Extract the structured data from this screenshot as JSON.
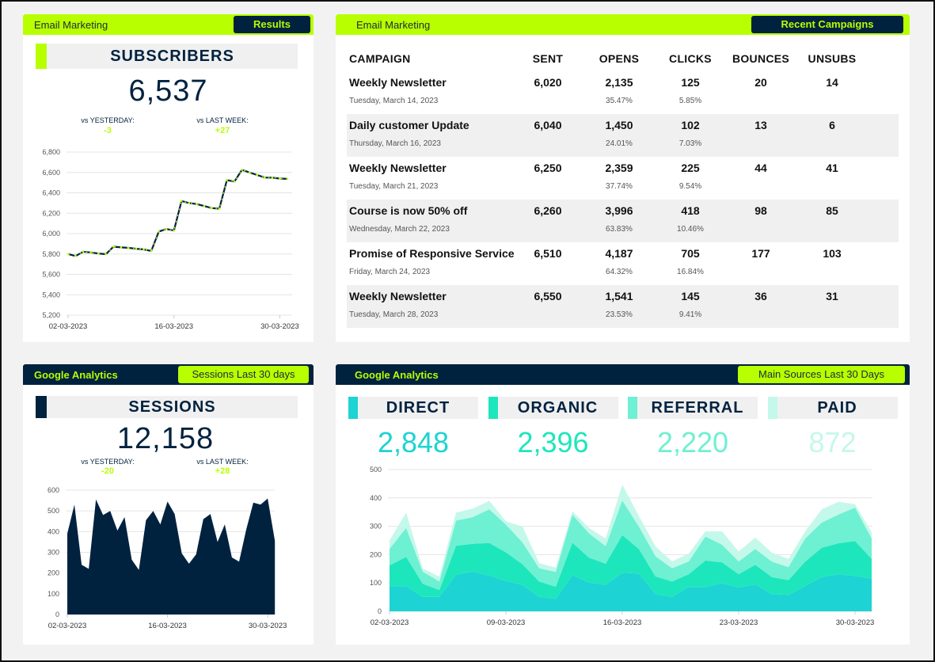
{
  "colors": {
    "lime": "#b8ff00",
    "navy": "#01223f",
    "direct": "#1dd3d3",
    "organic": "#1ee6bc",
    "referral": "#6ef0d2",
    "paid": "#c4f8ea"
  },
  "subscribers": {
    "section": "Email Marketing",
    "badge": "Results",
    "label": "SUBSCRIBERS",
    "value": "6,537",
    "vs_yesterday_label": "vs YESTERDAY:",
    "vs_yesterday": "-3",
    "vs_last_week_label": "vs LAST WEEK:",
    "vs_last_week": "+27"
  },
  "sessions": {
    "section": "Google Analytics",
    "badge": "Sessions Last 30 days",
    "label": "SESSIONS",
    "value": "12,158",
    "vs_yesterday_label": "vs YESTERDAY:",
    "vs_yesterday": "-20",
    "vs_last_week_label": "vs LAST WEEK:",
    "vs_last_week": "+28"
  },
  "campaigns": {
    "section": "Email Marketing",
    "badge": "Recent Campaigns",
    "headers": [
      "CAMPAIGN",
      "SENT",
      "OPENS",
      "CLICKS",
      "BOUNCES",
      "UNSUBS"
    ],
    "rows": [
      {
        "name": "Weekly Newsletter",
        "date": "Tuesday, March 14, 2023",
        "sent": "6,020",
        "opens": "2,135",
        "open_rate": "35.47%",
        "clicks": "125",
        "click_rate": "5.85%",
        "bounces": "20",
        "unsubs": "14"
      },
      {
        "name": "Daily customer Update",
        "date": "Thursday, March 16, 2023",
        "sent": "6,040",
        "opens": "1,450",
        "open_rate": "24.01%",
        "clicks": "102",
        "click_rate": "7.03%",
        "bounces": "13",
        "unsubs": "6"
      },
      {
        "name": "Weekly Newsletter",
        "date": "Tuesday, March 21, 2023",
        "sent": "6,250",
        "opens": "2,359",
        "open_rate": "37.74%",
        "clicks": "225",
        "click_rate": "9.54%",
        "bounces": "44",
        "unsubs": "41"
      },
      {
        "name": "Course is now 50% off",
        "date": "Wednesday, March 22, 2023",
        "sent": "6,260",
        "opens": "3,996",
        "open_rate": "63.83%",
        "clicks": "418",
        "click_rate": "10.46%",
        "bounces": "98",
        "unsubs": "85"
      },
      {
        "name": "Promise of Responsive Service",
        "date": "Friday, March 24, 2023",
        "sent": "6,510",
        "opens": "4,187",
        "open_rate": "64.32%",
        "clicks": "705",
        "click_rate": "16.84%",
        "bounces": "177",
        "unsubs": "103"
      },
      {
        "name": "Weekly Newsletter",
        "date": "Tuesday, March 28, 2023",
        "sent": "6,550",
        "opens": "1,541",
        "open_rate": "23.53%",
        "clicks": "145",
        "click_rate": "9.41%",
        "bounces": "36",
        "unsubs": "31"
      }
    ]
  },
  "sources": {
    "section": "Google Analytics",
    "badge": "Main Sources Last 30 Days",
    "items": [
      {
        "label": "DIRECT",
        "value": "2,848"
      },
      {
        "label": "ORGANIC",
        "value": "2,396"
      },
      {
        "label": "REFERRAL",
        "value": "2,220"
      },
      {
        "label": "PAID",
        "value": "872"
      }
    ]
  },
  "chart_data": [
    {
      "type": "line",
      "ylim": [
        5200,
        6800
      ],
      "yticks": [
        "5,200",
        "5,400",
        "5,600",
        "5,800",
        "6,000",
        "6,200",
        "6,400",
        "6,600",
        "6,800"
      ],
      "xticks": [
        "02-03-2023",
        "16-03-2023",
        "30-03-2023"
      ],
      "grid": true,
      "x_start": "02-03-2023",
      "x_end": "31-03-2023",
      "values": [
        5800,
        5780,
        5822,
        5815,
        5805,
        5798,
        5872,
        5865,
        5860,
        5852,
        5845,
        5830,
        6020,
        6045,
        6030,
        6320,
        6300,
        6290,
        6270,
        6250,
        6245,
        6525,
        6510,
        6625,
        6600,
        6575,
        6550,
        6548,
        6540,
        6537
      ]
    },
    {
      "type": "area",
      "ylim": [
        0,
        600
      ],
      "yticks": [
        "0",
        "100",
        "200",
        "300",
        "400",
        "500",
        "600"
      ],
      "xticks": [
        "02-03-2023",
        "16-03-2023",
        "30-03-2023"
      ],
      "grid": true,
      "values": [
        390,
        530,
        240,
        220,
        555,
        480,
        500,
        405,
        470,
        265,
        215,
        455,
        500,
        435,
        545,
        485,
        295,
        245,
        290,
        460,
        485,
        350,
        435,
        275,
        255,
        410,
        540,
        530,
        560,
        355
      ]
    },
    {
      "type": "area",
      "stacked": true,
      "ylim": [
        0,
        500
      ],
      "yticks": [
        "0",
        "100",
        "200",
        "300",
        "400",
        "500"
      ],
      "xticks": [
        "02-03-2023",
        "09-03-2023",
        "16-03-2023",
        "23-03-2023",
        "30-03-2023"
      ],
      "grid": true,
      "series": [
        {
          "name": "DIRECT",
          "values": [
            89,
            89,
            51,
            51,
            129,
            140,
            126,
            107,
            93,
            51,
            44,
            128,
            101,
            93,
            136,
            133,
            61,
            51,
            86,
            86,
            99,
            84,
            95,
            61,
            58,
            89,
            121,
            131,
            125,
            115
          ]
        },
        {
          "name": "ORGANIC",
          "values": [
            73,
            103,
            46,
            24,
            102,
            98,
            115,
            101,
            73,
            54,
            43,
            114,
            88,
            75,
            133,
            87,
            62,
            54,
            45,
            93,
            74,
            47,
            69,
            60,
            52,
            86,
            103,
            109,
            123,
            70
          ]
        },
        {
          "name": "REFERRAL",
          "values": [
            58,
            102,
            43,
            30,
            89,
            94,
            119,
            98,
            77,
            47,
            52,
            99,
            86,
            62,
            122,
            79,
            71,
            47,
            45,
            85,
            62,
            45,
            56,
            54,
            46,
            82,
            89,
            101,
            118,
            72
          ]
        },
        {
          "name": "PAID",
          "values": [
            30,
            54,
            11,
            17,
            28,
            30,
            30,
            12,
            56,
            18,
            15,
            12,
            19,
            27,
            56,
            37,
            35,
            24,
            28,
            18,
            47,
            35,
            40,
            32,
            29,
            25,
            47,
            45,
            12,
            21
          ]
        }
      ]
    }
  ]
}
